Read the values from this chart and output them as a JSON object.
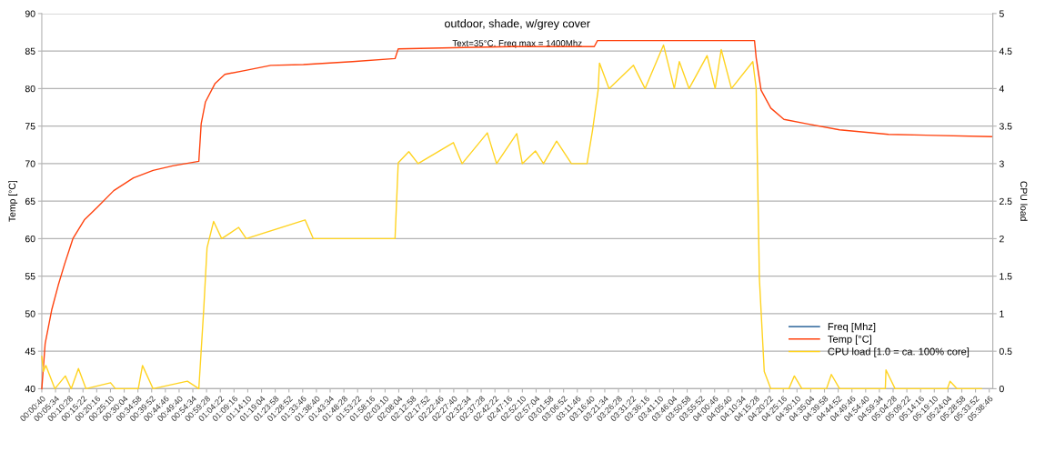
{
  "chart_data": {
    "type": "line",
    "title": "outdoor, shade, w/grey cover",
    "subtitle": "Text=35°C, Freq max = 1400Mhz",
    "ylabel": "Temp [°C]",
    "y2label": "CPU load",
    "series": [
      {
        "name": "Freq [Mhz]",
        "color": "#004586"
      },
      {
        "name": "Temp [°C]",
        "color": "#ff420e",
        "x": [
          0.0111,
          0.031,
          0.07,
          0.109,
          0.148,
          0.196,
          0.264,
          0.342,
          0.439,
          0.556,
          0.673,
          0.789,
          0.945,
          0.959,
          0.984,
          1.042,
          1.1,
          1.217,
          1.373,
          1.567,
          1.859,
          2.112,
          2.131,
          2.811,
          3.297,
          3.316,
          4.25,
          4.26,
          4.289,
          4.347,
          4.425,
          4.561,
          4.756,
          5.047,
          5.66
        ],
        "values": [
          40,
          46.0,
          50.5,
          53.8,
          56.7,
          60.0,
          62.5,
          64.2,
          66.4,
          68.1,
          69.1,
          69.7,
          70.3,
          75.3,
          78.2,
          80.7,
          81.9,
          82.4,
          83.1,
          83.2,
          83.6,
          84.0,
          85.3,
          85.6,
          85.6,
          86.4,
          86.4,
          84.1,
          79.8,
          77.4,
          75.9,
          75.3,
          74.5,
          73.9,
          73.6
        ]
      },
      {
        "name": "CPU load [1.0 = ca. 100% core]",
        "color": "#ffd320",
        "axis": "y2",
        "x": [
          0.0111,
          0.021,
          0.035,
          0.089,
          0.151,
          0.186,
          0.229,
          0.274,
          0.42,
          0.449,
          0.585,
          0.61,
          0.673,
          0.877,
          0.945,
          0.974,
          0.994,
          1.033,
          1.081,
          1.182,
          1.227,
          1.577,
          1.626,
          2.112,
          2.131,
          2.194,
          2.249,
          2.459,
          2.511,
          2.661,
          2.716,
          2.836,
          2.869,
          2.947,
          2.995,
          3.073,
          3.161,
          3.254,
          3.287,
          3.32,
          3.328,
          3.385,
          3.53,
          3.599,
          3.709,
          3.773,
          3.803,
          3.861,
          3.968,
          4.016,
          4.052,
          4.113,
          4.24,
          4.26,
          4.279,
          4.308,
          4.347,
          4.454,
          4.487,
          4.532,
          4.678,
          4.707,
          4.756,
          5.028,
          5.032,
          5.086,
          5.397,
          5.413,
          5.455,
          5.6
        ],
        "values": [
          0.43,
          0.23,
          0.31,
          0,
          0.17,
          0,
          0.27,
          0,
          0.08,
          0,
          0,
          0.31,
          0,
          0.1,
          0,
          1.05,
          1.88,
          2.23,
          2.0,
          2.15,
          2.0,
          2.25,
          2.0,
          2.0,
          3.01,
          3.16,
          3.0,
          3.28,
          3.0,
          3.41,
          3.0,
          3.4,
          3.0,
          3.17,
          3.0,
          3.3,
          3.0,
          3.0,
          3.45,
          3.98,
          4.34,
          4.0,
          4.31,
          4.0,
          4.58,
          4.0,
          4.36,
          4.0,
          4.44,
          4.0,
          4.52,
          4.0,
          4.36,
          4.0,
          1.47,
          0.23,
          0,
          0,
          0.17,
          0,
          0,
          0.19,
          0,
          0,
          0.25,
          0,
          0,
          0.1,
          0,
          0
        ]
      }
    ],
    "xlim": [
      0.0111,
      5.667
    ],
    "ylim": [
      40,
      90
    ],
    "y2lim": [
      0,
      5
    ],
    "yticks": [
      40,
      45,
      50,
      55,
      60,
      65,
      70,
      75,
      80,
      85,
      90
    ],
    "y2ticks": [
      0,
      0.5,
      1,
      1.5,
      2,
      2.5,
      3,
      3.5,
      4,
      4.5,
      5
    ],
    "xticks": [
      {
        "value": 0.0111,
        "label": "00:00:40"
      },
      {
        "value": 0.0928,
        "label": "00:05:34"
      },
      {
        "value": 0.1744,
        "label": "00:10:28"
      },
      {
        "value": 0.2561,
        "label": "00:15:22"
      },
      {
        "value": 0.3378,
        "label": "00:20:16"
      },
      {
        "value": 0.4194,
        "label": "00:25:10"
      },
      {
        "value": 0.5011,
        "label": "00:30:04"
      },
      {
        "value": 0.5828,
        "label": "00:34:58"
      },
      {
        "value": 0.6644,
        "label": "00:39:52"
      },
      {
        "value": 0.7461,
        "label": "00:44:46"
      },
      {
        "value": 0.8278,
        "label": "00:49:40"
      },
      {
        "value": 0.9094,
        "label": "00:54:34"
      },
      {
        "value": 0.9911,
        "label": "00:59:28"
      },
      {
        "value": 1.0728,
        "label": "01:04:22"
      },
      {
        "value": 1.1544,
        "label": "01:09:16"
      },
      {
        "value": 1.2361,
        "label": "01:14:10"
      },
      {
        "value": 1.3178,
        "label": "01:19:04"
      },
      {
        "value": 1.3994,
        "label": "01:23:58"
      },
      {
        "value": 1.4811,
        "label": "01:28:52"
      },
      {
        "value": 1.5628,
        "label": "01:33:46"
      },
      {
        "value": 1.6444,
        "label": "01:38:40"
      },
      {
        "value": 1.7261,
        "label": "01:43:34"
      },
      {
        "value": 1.8078,
        "label": "01:48:28"
      },
      {
        "value": 1.8894,
        "label": "01:53:22"
      },
      {
        "value": 1.9711,
        "label": "01:58:16"
      },
      {
        "value": 2.0528,
        "label": "02:03:10"
      },
      {
        "value": 2.1344,
        "label": "02:08:04"
      },
      {
        "value": 2.2161,
        "label": "02:12:58"
      },
      {
        "value": 2.2978,
        "label": "02:17:52"
      },
      {
        "value": 2.3794,
        "label": "02:22:46"
      },
      {
        "value": 2.4611,
        "label": "02:27:40"
      },
      {
        "value": 2.5428,
        "label": "02:32:34"
      },
      {
        "value": 2.6244,
        "label": "02:37:28"
      },
      {
        "value": 2.7061,
        "label": "02:42:22"
      },
      {
        "value": 2.7878,
        "label": "02:47:16"
      },
      {
        "value": 2.8694,
        "label": "02:52:10"
      },
      {
        "value": 2.9511,
        "label": "02:57:04"
      },
      {
        "value": 3.0328,
        "label": "03:01:58"
      },
      {
        "value": 3.1144,
        "label": "03:06:52"
      },
      {
        "value": 3.1961,
        "label": "03:11:46"
      },
      {
        "value": 3.2778,
        "label": "03:16:40"
      },
      {
        "value": 3.3594,
        "label": "03:21:34"
      },
      {
        "value": 3.4411,
        "label": "03:26:28"
      },
      {
        "value": 3.5228,
        "label": "03:31:22"
      },
      {
        "value": 3.6044,
        "label": "03:36:16"
      },
      {
        "value": 3.6861,
        "label": "03:41:10"
      },
      {
        "value": 3.7678,
        "label": "03:46:04"
      },
      {
        "value": 3.8494,
        "label": "03:50:58"
      },
      {
        "value": 3.9311,
        "label": "03:55:52"
      },
      {
        "value": 4.0128,
        "label": "04:00:46"
      },
      {
        "value": 4.0944,
        "label": "04:05:40"
      },
      {
        "value": 4.1761,
        "label": "04:10:34"
      },
      {
        "value": 4.2578,
        "label": "04:15:28"
      },
      {
        "value": 4.3394,
        "label": "04:20:22"
      },
      {
        "value": 4.4211,
        "label": "04:25:16"
      },
      {
        "value": 4.5028,
        "label": "04:30:10"
      },
      {
        "value": 4.5844,
        "label": "04:35:04"
      },
      {
        "value": 4.6661,
        "label": "04:39:58"
      },
      {
        "value": 4.7478,
        "label": "04:44:52"
      },
      {
        "value": 4.8294,
        "label": "04:49:46"
      },
      {
        "value": 4.9111,
        "label": "04:54:40"
      },
      {
        "value": 4.9928,
        "label": "04:59:34"
      },
      {
        "value": 5.0744,
        "label": "05:04:28"
      },
      {
        "value": 5.1561,
        "label": "05:09:22"
      },
      {
        "value": 5.2378,
        "label": "05:14:16"
      },
      {
        "value": 5.3194,
        "label": "05:19:10"
      },
      {
        "value": 5.4011,
        "label": "05:24:04"
      },
      {
        "value": 5.4828,
        "label": "05:28:58"
      },
      {
        "value": 5.5644,
        "label": "05:33:52"
      },
      {
        "value": 5.6461,
        "label": "05:38:46"
      }
    ],
    "grid": "y",
    "legend": "bottom right",
    "marker": "none",
    "line_style": "solid"
  }
}
